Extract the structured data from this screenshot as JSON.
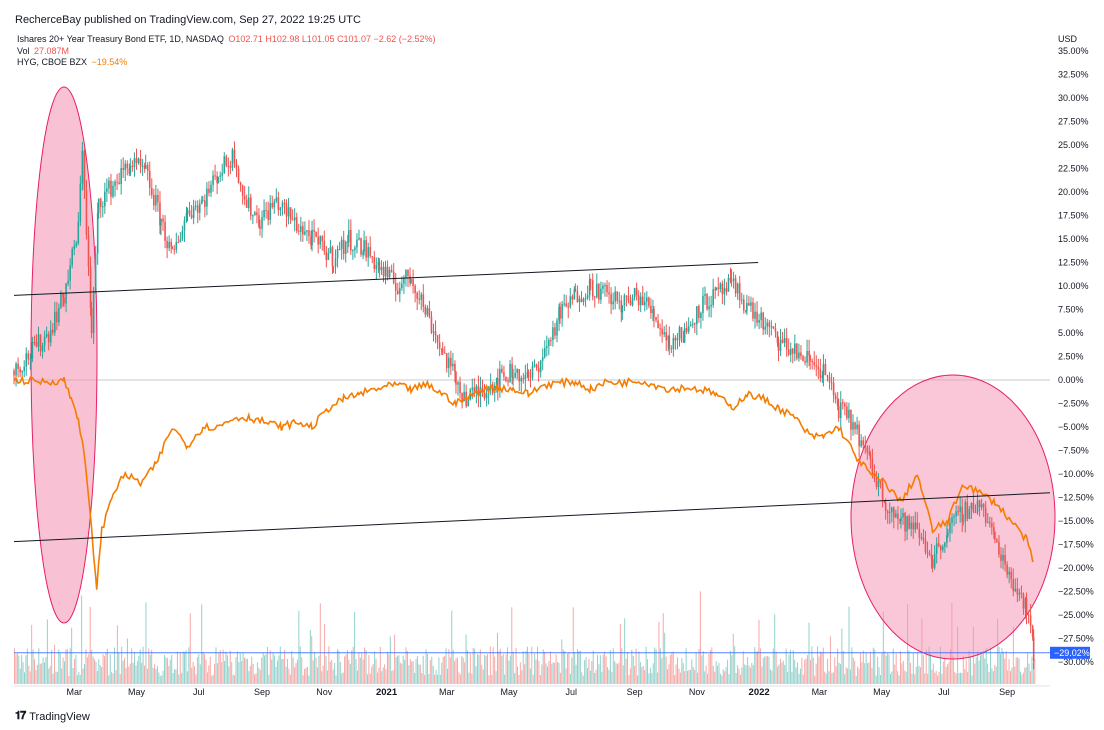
{
  "header": {
    "publisher": "RecherceBay published on TradingView.com, Sep 27, 2022 19:25 UTC"
  },
  "legend": {
    "main_title": "Ishares 20+ Year Treasury Bond ETF, 1D, NASDAQ",
    "ohlc": "O102.71 H102.98 L101.05 C101.07 −2.62 (−2.52%)",
    "vol_label": "Vol",
    "vol_value": "27.087M",
    "hyg_label": "HYG, CBOE BZX",
    "hyg_value": "−19.54%"
  },
  "footer": {
    "brand": "TradingView"
  },
  "colors": {
    "up": "#26a69a",
    "down": "#ef5350",
    "hyg": "#f57c00",
    "highlight_fill": "#f48fb1",
    "highlight_stroke": "#e91e63",
    "baseline_label_bg": "#2962ff"
  },
  "chart_data": {
    "type": "line",
    "currency": "USD",
    "y_unit": "%",
    "ylim": [
      -30,
      35
    ],
    "y_ticks": [
      "35.00%",
      "32.50%",
      "30.00%",
      "27.50%",
      "25.00%",
      "22.50%",
      "20.00%",
      "17.50%",
      "15.00%",
      "12.50%",
      "10.00%",
      "7.50%",
      "5.00%",
      "2.50%",
      "0.00%",
      "−2.50%",
      "−5.00%",
      "−7.50%",
      "−10.00%",
      "−12.50%",
      "−15.00%",
      "−17.50%",
      "−20.00%",
      "−22.50%",
      "−25.00%",
      "−27.50%",
      "−30.00%"
    ],
    "x_ticks": [
      {
        "label": "Mar",
        "x": "2020-03-01",
        "strong": false
      },
      {
        "label": "May",
        "x": "2020-05-01",
        "strong": false
      },
      {
        "label": "Jul",
        "x": "2020-07-01",
        "strong": false
      },
      {
        "label": "Sep",
        "x": "2020-09-01",
        "strong": false
      },
      {
        "label": "Nov",
        "x": "2020-11-01",
        "strong": false
      },
      {
        "label": "2021",
        "x": "2021-01-01",
        "strong": true
      },
      {
        "label": "Mar",
        "x": "2021-03-01",
        "strong": false
      },
      {
        "label": "May",
        "x": "2021-05-01",
        "strong": false
      },
      {
        "label": "Jul",
        "x": "2021-07-01",
        "strong": false
      },
      {
        "label": "Sep",
        "x": "2021-09-01",
        "strong": false
      },
      {
        "label": "Nov",
        "x": "2021-11-01",
        "strong": false
      },
      {
        "label": "2022",
        "x": "2022-01-01",
        "strong": true
      },
      {
        "label": "Mar",
        "x": "2022-03-01",
        "strong": false
      },
      {
        "label": "May",
        "x": "2022-05-01",
        "strong": false
      },
      {
        "label": "Jul",
        "x": "2022-07-01",
        "strong": false
      },
      {
        "label": "Sep",
        "x": "2022-09-01",
        "strong": false
      }
    ],
    "x_range": [
      "2020-01-02",
      "2022-10-13"
    ],
    "current_value_label": "−29.02%",
    "current_value": -29.02,
    "series": [
      {
        "name": "Ishares 20+ Year Treasury Bond ETF",
        "kind": "candles",
        "points": [
          [
            "2020-01-02",
            1
          ],
          [
            "2020-01-20",
            3
          ],
          [
            "2020-02-05",
            5
          ],
          [
            "2020-02-20",
            9
          ],
          [
            "2020-03-05",
            16
          ],
          [
            "2020-03-09",
            25
          ],
          [
            "2020-03-18",
            5
          ],
          [
            "2020-03-25",
            19
          ],
          [
            "2020-04-10",
            21
          ],
          [
            "2020-04-25",
            23
          ],
          [
            "2020-05-10",
            22
          ],
          [
            "2020-05-25",
            17
          ],
          [
            "2020-06-05",
            13
          ],
          [
            "2020-06-20",
            18
          ],
          [
            "2020-07-05",
            19
          ],
          [
            "2020-07-20",
            22
          ],
          [
            "2020-08-05",
            24
          ],
          [
            "2020-08-15",
            19
          ],
          [
            "2020-08-30",
            17
          ],
          [
            "2020-09-15",
            19
          ],
          [
            "2020-10-01",
            17
          ],
          [
            "2020-10-20",
            15
          ],
          [
            "2020-11-10",
            13
          ],
          [
            "2020-11-25",
            15
          ],
          [
            "2020-12-10",
            14
          ],
          [
            "2020-12-25",
            12
          ],
          [
            "2021-01-10",
            10
          ],
          [
            "2021-01-25",
            11
          ],
          [
            "2021-02-10",
            7
          ],
          [
            "2021-02-25",
            3
          ],
          [
            "2021-03-10",
            0
          ],
          [
            "2021-03-20",
            -2
          ],
          [
            "2021-04-05",
            -1
          ],
          [
            "2021-04-20",
            0
          ],
          [
            "2021-05-05",
            1
          ],
          [
            "2021-05-20",
            0
          ],
          [
            "2021-06-05",
            3
          ],
          [
            "2021-06-20",
            7
          ],
          [
            "2021-07-05",
            9
          ],
          [
            "2021-07-20",
            10
          ],
          [
            "2021-08-05",
            9
          ],
          [
            "2021-08-20",
            8
          ],
          [
            "2021-09-05",
            9
          ],
          [
            "2021-09-20",
            7
          ],
          [
            "2021-10-05",
            4
          ],
          [
            "2021-10-20",
            5
          ],
          [
            "2021-11-05",
            8
          ],
          [
            "2021-11-20",
            9
          ],
          [
            "2021-12-05",
            10
          ],
          [
            "2021-12-20",
            8
          ],
          [
            "2022-01-05",
            6
          ],
          [
            "2022-01-20",
            4
          ],
          [
            "2022-02-05",
            3
          ],
          [
            "2022-02-20",
            2
          ],
          [
            "2022-03-05",
            1
          ],
          [
            "2022-03-20",
            -3
          ],
          [
            "2022-04-05",
            -5
          ],
          [
            "2022-04-20",
            -9
          ],
          [
            "2022-05-05",
            -13
          ],
          [
            "2022-05-20",
            -15
          ],
          [
            "2022-06-05",
            -16
          ],
          [
            "2022-06-20",
            -19
          ],
          [
            "2022-07-05",
            -16
          ],
          [
            "2022-07-20",
            -14
          ],
          [
            "2022-08-05",
            -13
          ],
          [
            "2022-08-20",
            -17
          ],
          [
            "2022-09-05",
            -21
          ],
          [
            "2022-09-20",
            -24
          ],
          [
            "2022-09-27",
            -29.02
          ]
        ]
      },
      {
        "name": "HYG, CBOE BZX",
        "kind": "line",
        "points": [
          [
            "2020-01-02",
            0
          ],
          [
            "2020-02-05",
            -0.2
          ],
          [
            "2020-02-20",
            0
          ],
          [
            "2020-02-27",
            -2
          ],
          [
            "2020-03-05",
            -4
          ],
          [
            "2020-03-12",
            -9
          ],
          [
            "2020-03-23",
            -22
          ],
          [
            "2020-03-28",
            -16
          ],
          [
            "2020-04-08",
            -12
          ],
          [
            "2020-04-20",
            -10
          ],
          [
            "2020-05-05",
            -11
          ],
          [
            "2020-05-20",
            -9
          ],
          [
            "2020-06-05",
            -5
          ],
          [
            "2020-06-20",
            -7
          ],
          [
            "2020-07-05",
            -5
          ],
          [
            "2020-07-20",
            -5
          ],
          [
            "2020-08-05",
            -4
          ],
          [
            "2020-08-20",
            -4
          ],
          [
            "2020-09-05",
            -4.5
          ],
          [
            "2020-09-20",
            -5
          ],
          [
            "2020-10-05",
            -4.5
          ],
          [
            "2020-10-20",
            -5
          ],
          [
            "2020-11-05",
            -3
          ],
          [
            "2020-11-20",
            -2
          ],
          [
            "2020-12-05",
            -1.5
          ],
          [
            "2020-12-20",
            -1
          ],
          [
            "2021-01-10",
            -0.5
          ],
          [
            "2021-01-25",
            -1
          ],
          [
            "2021-02-10",
            -0.5
          ],
          [
            "2021-02-25",
            -1.5
          ],
          [
            "2021-03-10",
            -2.5
          ],
          [
            "2021-03-20",
            -2
          ],
          [
            "2021-04-05",
            -1
          ],
          [
            "2021-04-20",
            -0.8
          ],
          [
            "2021-05-05",
            -1
          ],
          [
            "2021-05-20",
            -1.5
          ],
          [
            "2021-06-05",
            -0.5
          ],
          [
            "2021-06-20",
            -0.3
          ],
          [
            "2021-07-05",
            -0.2
          ],
          [
            "2021-07-20",
            -1
          ],
          [
            "2021-08-05",
            -0.2
          ],
          [
            "2021-08-20",
            -0.3
          ],
          [
            "2021-09-05",
            0
          ],
          [
            "2021-09-20",
            -0.5
          ],
          [
            "2021-10-05",
            -1
          ],
          [
            "2021-10-20",
            -0.8
          ],
          [
            "2021-11-05",
            -1
          ],
          [
            "2021-11-20",
            -1.5
          ],
          [
            "2021-12-05",
            -3
          ],
          [
            "2021-12-20",
            -1.5
          ],
          [
            "2022-01-05",
            -2
          ],
          [
            "2022-01-20",
            -3
          ],
          [
            "2022-02-05",
            -4
          ],
          [
            "2022-02-20",
            -6
          ],
          [
            "2022-03-05",
            -6
          ],
          [
            "2022-03-20",
            -5
          ],
          [
            "2022-04-05",
            -8
          ],
          [
            "2022-04-20",
            -10
          ],
          [
            "2022-05-05",
            -11
          ],
          [
            "2022-05-20",
            -13
          ],
          [
            "2022-06-05",
            -10
          ],
          [
            "2022-06-20",
            -16
          ],
          [
            "2022-07-05",
            -15
          ],
          [
            "2022-07-20",
            -11
          ],
          [
            "2022-08-05",
            -12
          ],
          [
            "2022-08-20",
            -13
          ],
          [
            "2022-09-05",
            -15
          ],
          [
            "2022-09-20",
            -17
          ],
          [
            "2022-09-27",
            -19.54
          ]
        ]
      }
    ],
    "trend_lines": [
      {
        "from": [
          "2020-01-02",
          9
        ],
        "to": [
          "2021-12-31",
          12.5
        ]
      },
      {
        "from": [
          "2020-01-02",
          -17.2
        ],
        "to": [
          "2022-10-13",
          -12
        ]
      }
    ],
    "volume": {
      "label": "Vol",
      "last": "27.087M"
    }
  }
}
